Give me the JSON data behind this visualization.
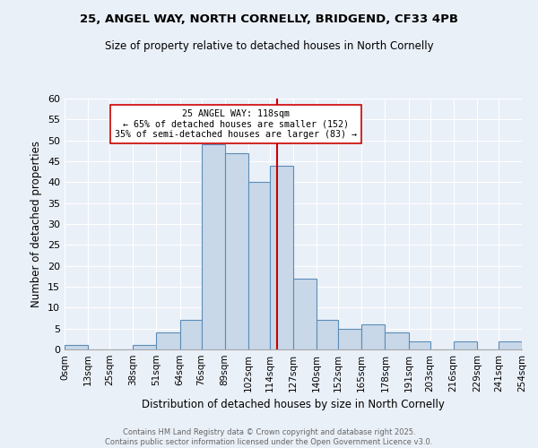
{
  "title1": "25, ANGEL WAY, NORTH CORNELLY, BRIDGEND, CF33 4PB",
  "title2": "Size of property relative to detached houses in North Cornelly",
  "xlabel": "Distribution of detached houses by size in North Cornelly",
  "ylabel": "Number of detached properties",
  "bin_edges": [
    0,
    13,
    25,
    38,
    51,
    64,
    76,
    89,
    102,
    114,
    127,
    140,
    152,
    165,
    178,
    191,
    203,
    216,
    229,
    241,
    254
  ],
  "bin_counts": [
    1,
    0,
    0,
    1,
    4,
    7,
    49,
    47,
    40,
    44,
    17,
    7,
    5,
    6,
    4,
    2,
    0,
    2,
    0,
    2
  ],
  "bar_color": "#c8d8e8",
  "bar_edge_color": "#5b8db8",
  "property_size": 118,
  "vline_color": "#cc0000",
  "annotation_text": "25 ANGEL WAY: 118sqm\n← 65% of detached houses are smaller (152)\n35% of semi-detached houses are larger (83) →",
  "annotation_box_color": "#ffffff",
  "annotation_box_edge": "#cc0000",
  "ylim": [
    0,
    60
  ],
  "yticks": [
    0,
    5,
    10,
    15,
    20,
    25,
    30,
    35,
    40,
    45,
    50,
    55,
    60
  ],
  "bg_color": "#eaf0f8",
  "fig_bg_color": "#eaf0f8",
  "footer_text": "Contains HM Land Registry data © Crown copyright and database right 2025.\nContains public sector information licensed under the Open Government Licence v3.0.",
  "tick_labels": [
    "0sqm",
    "13sqm",
    "25sqm",
    "38sqm",
    "51sqm",
    "64sqm",
    "76sqm",
    "89sqm",
    "102sqm",
    "114sqm",
    "127sqm",
    "140sqm",
    "152sqm",
    "165sqm",
    "178sqm",
    "191sqm",
    "203sqm",
    "216sqm",
    "229sqm",
    "241sqm",
    "254sqm"
  ]
}
